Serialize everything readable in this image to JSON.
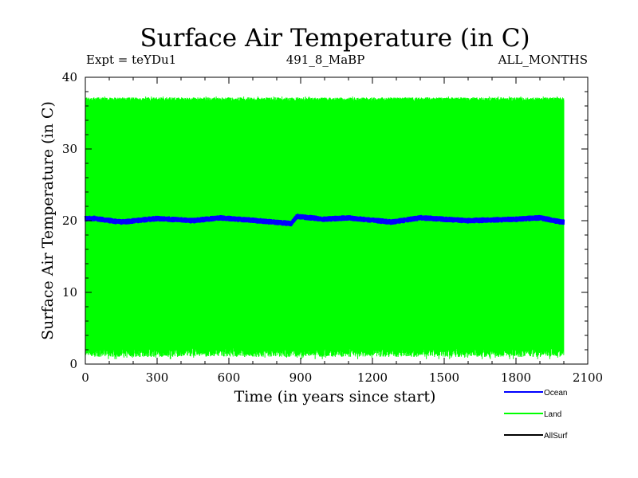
{
  "chart_data": {
    "type": "line",
    "title": "Surface Air Temperature (in C)",
    "subtitle_left": "Expt = teYDu1",
    "subtitle_center": "491_8_MaBP",
    "subtitle_right": "ALL_MONTHS",
    "xlabel": "Time (in years since start)",
    "ylabel": "Surface Air Temperature (in C)",
    "xlim": [
      0,
      2100
    ],
    "ylim": [
      0,
      40
    ],
    "x_ticks": [
      0,
      300,
      600,
      900,
      1200,
      1500,
      1800,
      2100
    ],
    "y_ticks": [
      0,
      10,
      20,
      30,
      40
    ],
    "x_minor_step": 100,
    "y_minor_step": 2,
    "legend_position": "bottom-right",
    "series": [
      {
        "name": "Ocean",
        "color": "#0000ff",
        "x_range": [
          0,
          2000
        ],
        "mean": 20.0,
        "band": [
          19.4,
          20.6
        ],
        "fluctuations": [
          {
            "x": 40,
            "value": 20.3
          },
          {
            "x": 150,
            "value": 19.8
          },
          {
            "x": 300,
            "value": 20.3
          },
          {
            "x": 450,
            "value": 20.0
          },
          {
            "x": 560,
            "value": 20.4
          },
          {
            "x": 680,
            "value": 20.1
          },
          {
            "x": 860,
            "value": 19.6
          },
          {
            "x": 885,
            "value": 20.6
          },
          {
            "x": 1000,
            "value": 20.2
          },
          {
            "x": 1100,
            "value": 20.4
          },
          {
            "x": 1280,
            "value": 19.8
          },
          {
            "x": 1400,
            "value": 20.4
          },
          {
            "x": 1600,
            "value": 20.0
          },
          {
            "x": 1800,
            "value": 20.2
          },
          {
            "x": 1900,
            "value": 20.4
          },
          {
            "x": 1990,
            "value": 19.8
          }
        ]
      },
      {
        "name": "Land",
        "color": "#00ff00",
        "x_range": [
          0,
          2000
        ],
        "upper_envelope": [
          36.7,
          37.2
        ],
        "lower_envelope": [
          1.0,
          2.3
        ],
        "min_dips": [
          0.7,
          0.9,
          1.1
        ],
        "max_peaks": [
          37.3
        ]
      },
      {
        "name": "AllSurf",
        "color": "#000000",
        "x_range": [
          0,
          2000
        ],
        "values_visible": false
      }
    ]
  }
}
